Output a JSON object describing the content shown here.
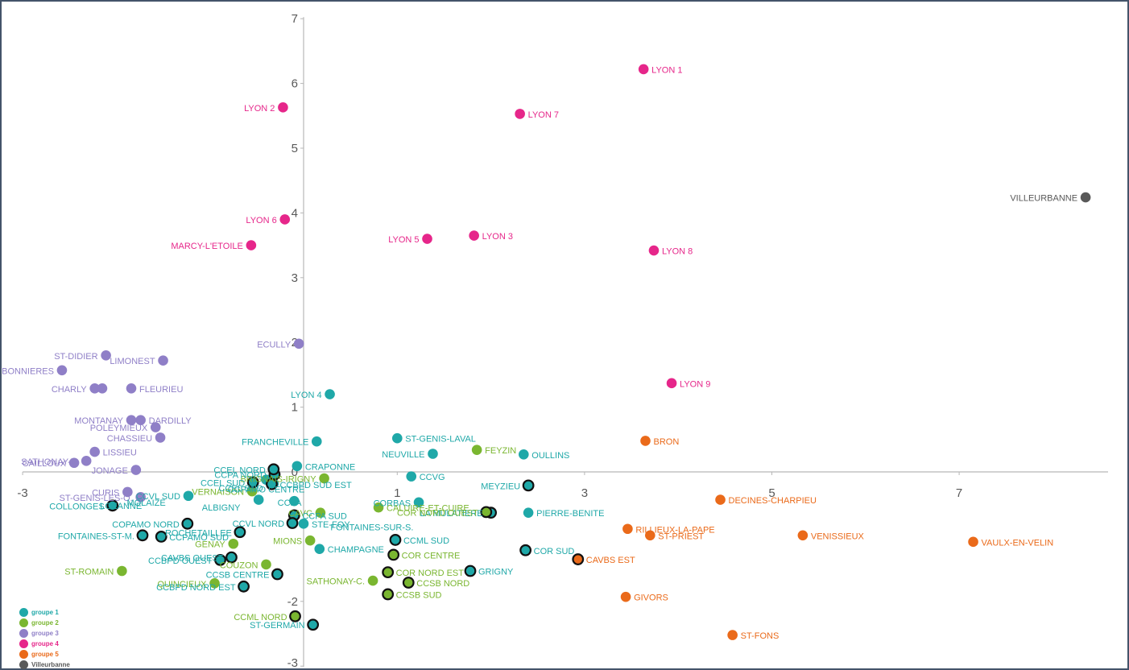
{
  "chart_data": {
    "type": "scatter",
    "title": "",
    "xlabel": "",
    "ylabel": "",
    "xlim": [
      -3,
      8
    ],
    "ylim": [
      -3,
      7
    ],
    "x_ticks": [
      {
        "value": -3,
        "label": "-3"
      },
      {
        "value": 1,
        "label": "1"
      },
      {
        "value": 3,
        "label": "3"
      },
      {
        "value": 5,
        "label": "5"
      },
      {
        "value": 7,
        "label": "7"
      }
    ],
    "y_ticks": [
      {
        "value": 7,
        "label": "7"
      },
      {
        "value": 6,
        "label": "6"
      },
      {
        "value": 5,
        "label": "5"
      },
      {
        "value": 4,
        "label": "4"
      },
      {
        "value": 3,
        "label": "3"
      },
      {
        "value": 2,
        "label": "2"
      },
      {
        "value": 1,
        "label": "1"
      },
      {
        "value": 0,
        "label": "0"
      },
      {
        "value": -2,
        "label": "-2"
      },
      {
        "value": -3,
        "label": "-3"
      }
    ],
    "grid": false,
    "legend_position": "bottom-left",
    "series": [
      {
        "name": "groupe 1",
        "color": "#1fa8a8",
        "points": [
          {
            "x": 0.28,
            "y": 1.2,
            "label": "LYON 4",
            "label_side": "left"
          },
          {
            "x": 1.0,
            "y": 0.52,
            "label": "ST-GENIS-LAVAL",
            "label_side": "right"
          },
          {
            "x": 0.14,
            "y": 0.47,
            "label": "FRANCHEVILLE",
            "label_side": "left"
          },
          {
            "x": 1.38,
            "y": 0.28,
            "label": "NEUVILLE",
            "label_side": "left"
          },
          {
            "x": 2.35,
            "y": 0.27,
            "label": "OULLINS",
            "label_side": "right"
          },
          {
            "x": -0.07,
            "y": 0.09,
            "label": "CRAPONNE",
            "label_side": "right"
          },
          {
            "x": 1.15,
            "y": -0.07,
            "label": "CCVG",
            "label_side": "right"
          },
          {
            "x": -0.4,
            "y": -0.12,
            "label": "",
            "label_side": "right"
          },
          {
            "x": -1.23,
            "y": -0.37,
            "label": "CCVL SUD",
            "label_side": "left"
          },
          {
            "x": -0.32,
            "y": -0.18,
            "label": "",
            "label_side": "right"
          },
          {
            "x": -0.48,
            "y": -0.43,
            "label": "",
            "label_side": "right"
          },
          {
            "x": -0.1,
            "y": -0.45,
            "label": "",
            "label_side": "right"
          },
          {
            "x": 2.4,
            "y": -0.63,
            "label": "PIERRE-BENITE",
            "label_side": "right"
          },
          {
            "x": 1.23,
            "y": -0.47,
            "label": "CORBAS",
            "label_side": "left"
          },
          {
            "x": 0.0,
            "y": -0.8,
            "label": "STE-FOY",
            "label_side": "right"
          },
          {
            "x": 0.17,
            "y": -1.19,
            "label": "CHAMPAGNE",
            "label_side": "right"
          }
        ]
      },
      {
        "name": "groupe 2",
        "color": "#7ab630",
        "points": [
          {
            "x": 1.85,
            "y": 0.34,
            "label": "FEYZIN",
            "label_side": "right"
          },
          {
            "x": 0.22,
            "y": -0.1,
            "label": "BRIGNAIS-IRIGNY",
            "label_side": "left"
          },
          {
            "x": -0.55,
            "y": -0.3,
            "label": "VERNAISON",
            "label_side": "left"
          },
          {
            "x": 0.18,
            "y": -0.63,
            "label": "CAVC",
            "label_side": "left"
          },
          {
            "x": 0.8,
            "y": -0.55,
            "label": "CALUIRE-ET-CUIRE",
            "label_side": "right"
          },
          {
            "x": 0.07,
            "y": -1.06,
            "label": "MIONS",
            "label_side": "left"
          },
          {
            "x": -0.75,
            "y": -1.11,
            "label": "GENAY",
            "label_side": "left"
          },
          {
            "x": -0.4,
            "y": -1.43,
            "label": "COUZON",
            "label_side": "left"
          },
          {
            "x": -1.94,
            "y": -1.53,
            "label": "ST-ROMAIN",
            "label_side": "left"
          },
          {
            "x": -0.95,
            "y": -1.72,
            "label": "QUINCIEUX",
            "label_side": "left"
          },
          {
            "x": 0.74,
            "y": -1.68,
            "label": "SATHONAY-C.",
            "label_side": "left"
          }
        ]
      },
      {
        "name": "groupe 3",
        "color": "#8f7fc7",
        "points": [
          {
            "x": -2.11,
            "y": 1.8,
            "label": "ST-DIDIER",
            "label_side": "left"
          },
          {
            "x": -1.5,
            "y": 1.72,
            "label": "LIMONEST",
            "label_side": "left"
          },
          {
            "x": -0.05,
            "y": 1.98,
            "label": "ECULLY",
            "label_side": "left"
          },
          {
            "x": -2.58,
            "y": 1.57,
            "label": "CHARBONNIERES",
            "label_side": "left"
          },
          {
            "x": -2.23,
            "y": 1.29,
            "label": "CHARLY",
            "label_side": "left"
          },
          {
            "x": -2.15,
            "y": 1.29,
            "label": "",
            "label_side": "right"
          },
          {
            "x": -1.84,
            "y": 1.29,
            "label": "FLEURIEU",
            "label_side": "right"
          },
          {
            "x": -1.74,
            "y": 0.8,
            "label": "DARDILLY",
            "label_side": "right"
          },
          {
            "x": -1.84,
            "y": 0.8,
            "label": "MONTANAY",
            "label_side": "left"
          },
          {
            "x": -1.58,
            "y": 0.69,
            "label": "POLEYMIEUX",
            "label_side": "left"
          },
          {
            "x": -1.53,
            "y": 0.53,
            "label": "CHASSIEU",
            "label_side": "left"
          },
          {
            "x": -2.23,
            "y": 0.31,
            "label": "LISSIEU",
            "label_side": "right"
          },
          {
            "x": -2.32,
            "y": 0.17,
            "label": "SATHONAY-V.",
            "label_side": "left"
          },
          {
            "x": -2.45,
            "y": 0.14,
            "label": "CAILLOUX",
            "label_side": "left"
          },
          {
            "x": -1.79,
            "y": 0.03,
            "label": "JONAGE",
            "label_side": "left"
          },
          {
            "x": -1.88,
            "y": -0.31,
            "label": "CURIS",
            "label_side": "left"
          },
          {
            "x": -1.74,
            "y": -0.39,
            "label": "ST-GENIS-LES-O.",
            "label_side": "left"
          }
        ]
      },
      {
        "name": "groupe 4",
        "color": "#e6268a",
        "points": [
          {
            "x": 3.63,
            "y": 6.22,
            "label": "LYON 1",
            "label_side": "right"
          },
          {
            "x": 2.31,
            "y": 5.53,
            "label": "LYON 7",
            "label_side": "right"
          },
          {
            "x": -0.22,
            "y": 5.63,
            "label": "LYON 2",
            "label_side": "left"
          },
          {
            "x": -0.2,
            "y": 3.9,
            "label": "LYON 6",
            "label_side": "left"
          },
          {
            "x": -0.56,
            "y": 3.5,
            "label": "MARCY-L'ETOILE",
            "label_side": "left"
          },
          {
            "x": 1.32,
            "y": 3.6,
            "label": "LYON 5",
            "label_side": "left"
          },
          {
            "x": 1.82,
            "y": 3.65,
            "label": "LYON 3",
            "label_side": "right"
          },
          {
            "x": 3.74,
            "y": 3.42,
            "label": "LYON 8",
            "label_side": "right"
          },
          {
            "x": 3.93,
            "y": 1.37,
            "label": "LYON 9",
            "label_side": "right"
          }
        ]
      },
      {
        "name": "groupe 5",
        "color": "#ea6a1a",
        "points": [
          {
            "x": 3.65,
            "y": 0.48,
            "label": "BRON",
            "label_side": "right"
          },
          {
            "x": 4.45,
            "y": -0.43,
            "label": "DECINES-CHARPIEU",
            "label_side": "right"
          },
          {
            "x": 3.46,
            "y": -0.88,
            "label": "RILLIEUX-LA-PAPE",
            "label_side": "right"
          },
          {
            "x": 3.7,
            "y": -0.98,
            "label": "ST-PRIEST",
            "label_side": "right"
          },
          {
            "x": 5.33,
            "y": -0.98,
            "label": "VENISSIEUX",
            "label_side": "right"
          },
          {
            "x": 7.15,
            "y": -1.08,
            "label": "VAULX-EN-VELIN",
            "label_side": "right"
          },
          {
            "x": 3.44,
            "y": -1.93,
            "label": "GIVORS",
            "label_side": "right"
          },
          {
            "x": 4.58,
            "y": -2.52,
            "label": "ST-FONS",
            "label_side": "right"
          }
        ]
      },
      {
        "name": "Villeurbanne",
        "color": "#595959",
        "points": [
          {
            "x": 8.35,
            "y": 4.24,
            "label": "VILLEURBANNE",
            "label_side": "left"
          }
        ]
      },
      {
        "name": "",
        "color": "#1fa8a8",
        "ring": true,
        "points": [
          {
            "x": -0.31,
            "y": -0.04,
            "label": "CCPA NORD",
            "label_side": "left"
          },
          {
            "x": -0.32,
            "y": 0.04,
            "label": "CCEL NORD",
            "label_side": "left"
          },
          {
            "x": -0.54,
            "y": -0.16,
            "label": "CCEL SUD",
            "label_side": "left"
          },
          {
            "x": -0.34,
            "y": -0.19,
            "label": "CCBPD SUD EST",
            "label_side": "right"
          },
          {
            "x": 2.4,
            "y": -0.21,
            "label": "MEYZIEU",
            "label_side": "left"
          },
          {
            "x": -2.04,
            "y": -0.52,
            "label": "COLLONGES",
            "label_side": "left"
          },
          {
            "x": -0.1,
            "y": -0.67,
            "label": "CCPA SUD",
            "label_side": "right"
          },
          {
            "x": 2.0,
            "y": -0.63,
            "label": "LA MULATIERE",
            "label_side": "left"
          },
          {
            "x": -0.12,
            "y": -0.79,
            "label": "CCVL NORD",
            "label_side": "left"
          },
          {
            "x": -0.68,
            "y": -0.93,
            "label": "ROCHETAILLEE",
            "label_side": "left"
          },
          {
            "x": 0.98,
            "y": -1.05,
            "label": "CCML SUD",
            "label_side": "right"
          },
          {
            "x": 2.37,
            "y": -1.21,
            "label": "COR SUD",
            "label_side": "right"
          },
          {
            "x": -0.77,
            "y": -1.32,
            "label": "CAVBS OUEST",
            "label_side": "left"
          },
          {
            "x": -1.52,
            "y": -1.0,
            "label": "CCPAMO SUD",
            "label_side": "right"
          },
          {
            "x": -0.28,
            "y": -1.58,
            "label": "CCSB CENTRE",
            "label_side": "left"
          },
          {
            "x": 1.78,
            "y": -1.53,
            "label": "GRIGNY",
            "label_side": "right"
          },
          {
            "x": -0.64,
            "y": -1.77,
            "label": "CCBPD NORD EST",
            "label_side": "left"
          },
          {
            "x": 0.1,
            "y": -2.36,
            "label": "ST-GERMAIN",
            "label_side": "left"
          },
          {
            "x": -1.24,
            "y": -0.8,
            "label": "COPAMO NORD",
            "label_side": "left"
          },
          {
            "x": -1.72,
            "y": -0.98,
            "label": "FONTAINES-ST-M.",
            "label_side": "left"
          },
          {
            "x": -0.89,
            "y": -1.36,
            "label": "CCBPD OUEST",
            "label_side": "left"
          }
        ]
      },
      {
        "name": "",
        "color": "#7ab630",
        "ring": true,
        "points": [
          {
            "x": 1.95,
            "y": -0.62,
            "label": "COR NORD OUEST",
            "label_side": "left"
          },
          {
            "x": 0.96,
            "y": -1.28,
            "label": "COR CENTRE",
            "label_side": "right"
          },
          {
            "x": 0.9,
            "y": -1.55,
            "label": "COR NORD EST",
            "label_side": "right"
          },
          {
            "x": 1.12,
            "y": -1.71,
            "label": "CCSB NORD",
            "label_side": "right"
          },
          {
            "x": 0.9,
            "y": -1.89,
            "label": "CCSB SUD",
            "label_side": "right"
          },
          {
            "x": -0.09,
            "y": -2.23,
            "label": "CCML NORD",
            "label_side": "left"
          }
        ]
      },
      {
        "name": "",
        "color": "#ea6a1a",
        "ring": true,
        "points": [
          {
            "x": 2.93,
            "y": -1.35,
            "label": "CAVBS EST",
            "label_side": "right"
          }
        ]
      }
    ],
    "annotations": [
      {
        "x": -1.95,
        "y": -0.52,
        "label": "LOZANNE",
        "color": "#1fa8a8"
      },
      {
        "x": -1.68,
        "y": -0.47,
        "label": "MOLAIZE",
        "color": "#1fa8a8"
      },
      {
        "x": -0.88,
        "y": -0.55,
        "label": "ALBIGNY",
        "color": "#1fa8a8"
      },
      {
        "x": -0.4,
        "y": -0.27,
        "label": "CCPAMO CENTRE",
        "color": "#1fa8a8"
      },
      {
        "x": 0.73,
        "y": -0.85,
        "label": "FONTAINES-SUR-S.",
        "color": "#1fa8a8"
      },
      {
        "x": -0.67,
        "y": -0.25,
        "label": "CCEL SUD",
        "color": "#1fa8a8"
      },
      {
        "x": -0.15,
        "y": -0.47,
        "label": "CCPA",
        "color": "#1fa8a8"
      }
    ],
    "legend": [
      {
        "label": "groupe 1",
        "color": "#1fa8a8"
      },
      {
        "label": "groupe 2",
        "color": "#7ab630"
      },
      {
        "label": "groupe 3",
        "color": "#8f7fc7"
      },
      {
        "label": "groupe 4",
        "color": "#e6268a"
      },
      {
        "label": "groupe 5",
        "color": "#ea6a1a"
      },
      {
        "label": "Villeurbanne",
        "color": "#595959"
      }
    ]
  }
}
